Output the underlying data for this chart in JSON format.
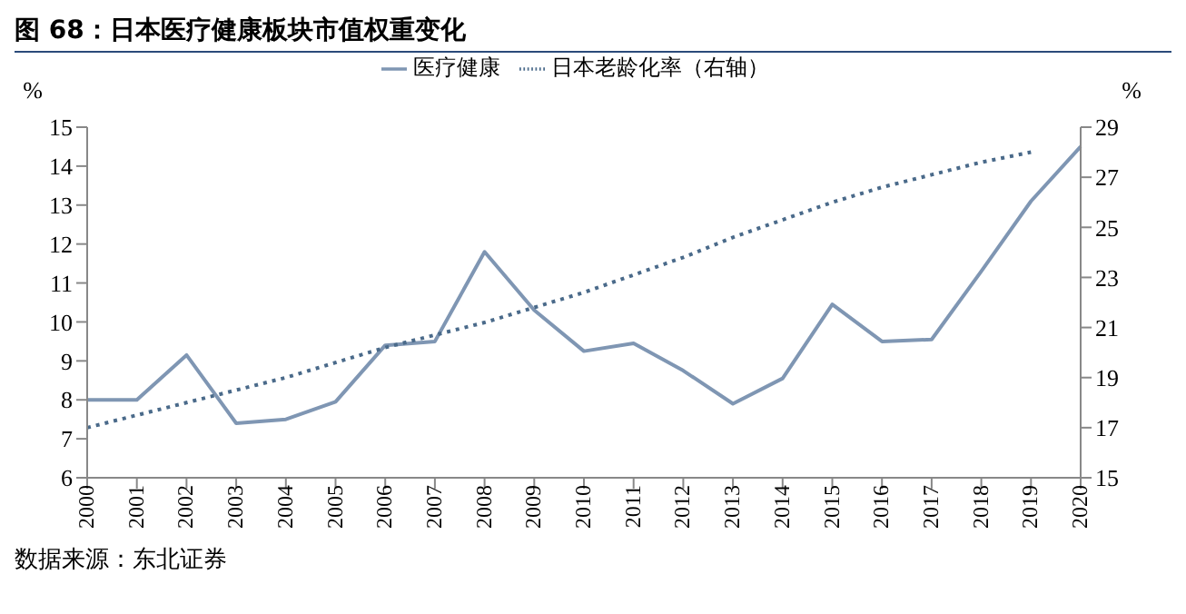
{
  "chart_data": {
    "type": "line",
    "title": "图 68：日本医疗健康板块市值权重变化",
    "categories": [
      "2000",
      "2001",
      "2002",
      "2003",
      "2004",
      "2005",
      "2006",
      "2007",
      "2008",
      "2009",
      "2010",
      "2011",
      "2012",
      "2013",
      "2014",
      "2015",
      "2016",
      "2017",
      "2018",
      "2019",
      "2020"
    ],
    "series": [
      {
        "name": "医疗健康",
        "color": "#7f96b3",
        "line_style": "solid",
        "values": [
          8.0,
          8.0,
          9.15,
          7.4,
          7.5,
          7.95,
          9.4,
          9.5,
          11.8,
          10.3,
          9.25,
          9.45,
          8.75,
          7.9,
          8.55,
          10.45,
          9.5,
          9.55,
          11.3,
          13.1,
          14.5
        ]
      },
      {
        "name": "日本老龄化率（右轴）",
        "color": "#4a6a8a",
        "line_style": "dotted",
        "axis": "y2",
        "values": [
          17.0,
          17.5,
          18.0,
          18.5,
          19.0,
          19.6,
          20.2,
          20.7,
          21.2,
          21.8,
          22.4,
          23.1,
          23.8,
          24.6,
          25.3,
          26.0,
          26.6,
          27.1,
          27.6,
          28.0,
          null
        ]
      }
    ],
    "ylabel": "%",
    "y2label": "%",
    "ylim": [
      6,
      15
    ],
    "yticks": [
      6,
      7,
      8,
      9,
      10,
      11,
      12,
      13,
      14,
      15
    ],
    "y2lim": [
      15,
      29
    ],
    "y2ticks": [
      15,
      17,
      19,
      21,
      23,
      25,
      27,
      29
    ],
    "marker": "none",
    "grid": false,
    "legend": "top",
    "annotations": [
      "数据来源：东北证券"
    ]
  }
}
